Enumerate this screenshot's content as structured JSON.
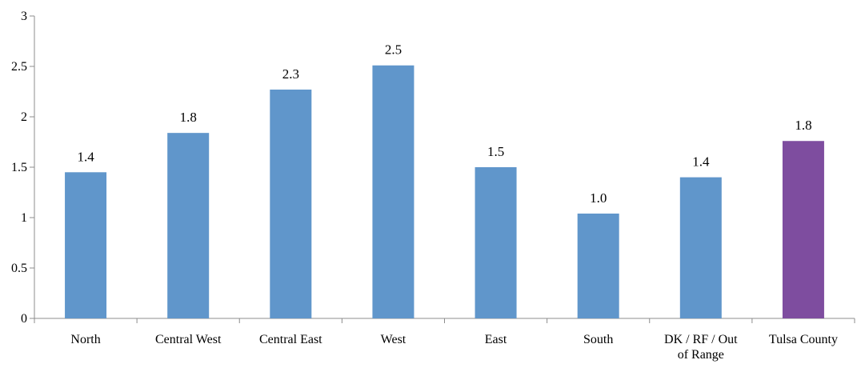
{
  "chart_data": {
    "type": "bar",
    "categories": [
      "North",
      "Central West",
      "Central East",
      "West",
      "East",
      "South",
      "DK / RF / Out of Range",
      "Tulsa County"
    ],
    "category_lines": [
      [
        "North"
      ],
      [
        "Central West"
      ],
      [
        "Central East"
      ],
      [
        "West"
      ],
      [
        "East"
      ],
      [
        "South"
      ],
      [
        "DK / RF / Out",
        "of Range"
      ],
      [
        "Tulsa County"
      ]
    ],
    "values": [
      1.45,
      1.84,
      2.27,
      2.51,
      1.5,
      1.04,
      1.4,
      1.76
    ],
    "data_labels": [
      "1.4",
      "1.8",
      "2.3",
      "2.5",
      "1.5",
      "1.0",
      "1.4",
      "1.8"
    ],
    "ylim": [
      0,
      3
    ],
    "yticks": [
      0,
      0.5,
      1,
      1.5,
      2,
      2.5,
      3
    ],
    "ytick_labels": [
      "0",
      "0.5",
      "1",
      "1.5",
      "2",
      "2.5",
      "3"
    ],
    "grid": false,
    "colors": {
      "default_bar": "#6096CB",
      "highlight_bar": "#7E4D9F",
      "axis": "#8C8C8C"
    },
    "highlight_index": 7
  }
}
